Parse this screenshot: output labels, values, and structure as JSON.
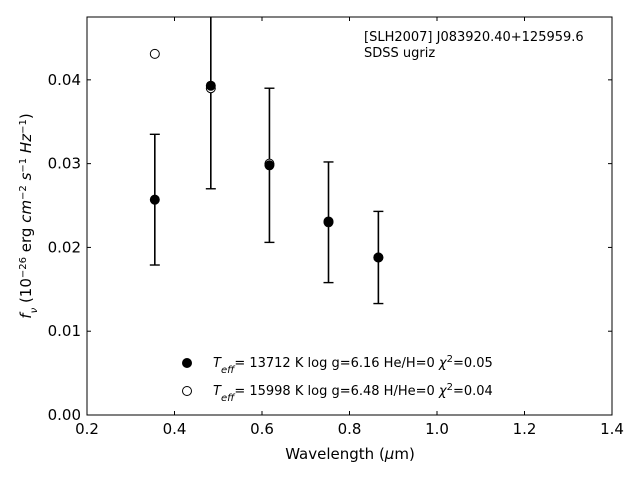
{
  "chart_data": {
    "type": "scatter",
    "title": "",
    "xlabel": "Wavelength (μm)",
    "ylabel": "f_ν (10^-26 erg cm^-2 s^-1 Hz^-1)",
    "xlim": [
      0.2,
      1.4
    ],
    "ylim": [
      0.0,
      0.0475
    ],
    "xticks": [
      "0.2",
      "0.4",
      "0.6",
      "0.8",
      "1.0",
      "1.2",
      "1.4"
    ],
    "yticks": [
      "0.00",
      "0.01",
      "0.02",
      "0.03",
      "0.04"
    ],
    "annotation": [
      "[SLH2007] J083920.40+125959.6",
      "SDSS ugriz"
    ],
    "observed": {
      "x": [
        0.355,
        0.483,
        0.617,
        0.752,
        0.866
      ],
      "y": [
        0.0257,
        0.0392,
        0.0298,
        0.023,
        0.0188
      ],
      "err": [
        0.0078,
        0.0122,
        0.0092,
        0.0072,
        0.0055
      ]
    },
    "series": [
      {
        "name": "T_eff= 13712 K  log g=6.16  He/H=0  χ²=0.05",
        "marker": "filled-circle",
        "x": [
          0.355,
          0.483,
          0.617,
          0.752,
          0.866
        ],
        "y": [
          0.0257,
          0.0393,
          0.0298,
          0.0231,
          0.0188
        ]
      },
      {
        "name": "T_eff= 15998 K  log g=6.48  H/He=0  χ²=0.04",
        "marker": "open-circle",
        "x": [
          0.355,
          0.483,
          0.617,
          0.752,
          0.866
        ],
        "y": [
          0.0431,
          0.039,
          0.03,
          0.023,
          0.0188
        ]
      }
    ],
    "legend_position": "bottom-center",
    "grid": false
  }
}
